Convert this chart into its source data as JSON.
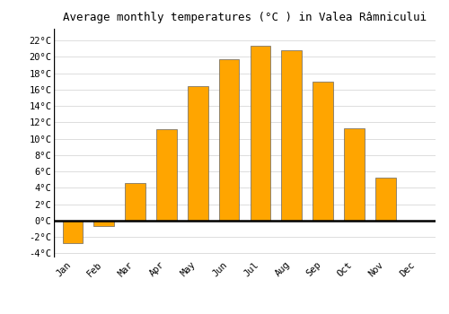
{
  "title": "Average monthly temperatures (°C ) in Valea Râmnicului",
  "months": [
    "Jan",
    "Feb",
    "Mar",
    "Apr",
    "May",
    "Jun",
    "Jul",
    "Aug",
    "Sep",
    "Oct",
    "Nov",
    "Dec"
  ],
  "values": [
    -2.8,
    -0.7,
    4.6,
    11.2,
    16.4,
    19.7,
    21.4,
    20.8,
    17.0,
    11.3,
    5.3,
    0.0
  ],
  "bar_color": "#FFA500",
  "bar_edge_color": "#666666",
  "background_color": "#ffffff",
  "plot_bg_color": "#ffffff",
  "ylim": [
    -4.5,
    23.5
  ],
  "yticks": [
    -4,
    -2,
    0,
    2,
    4,
    6,
    8,
    10,
    12,
    14,
    16,
    18,
    20,
    22
  ],
  "ytick_labels": [
    "-4°C",
    "-2°C",
    "0°C",
    "2°C",
    "4°C",
    "6°C",
    "8°C",
    "10°C",
    "12°C",
    "14°C",
    "16°C",
    "18°C",
    "20°C",
    "22°C"
  ],
  "title_fontsize": 9,
  "tick_fontsize": 7.5,
  "grid_color": "#dddddd",
  "zero_line_color": "#000000",
  "bar_width": 0.65
}
